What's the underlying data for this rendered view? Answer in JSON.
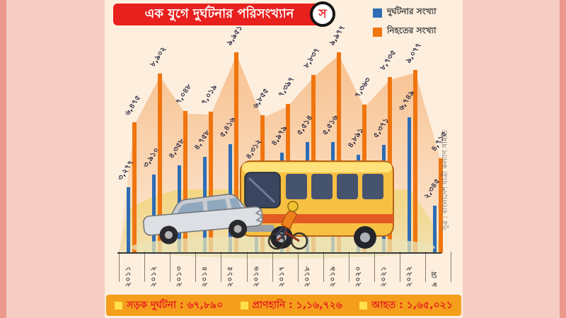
{
  "header": {
    "title": "এক যুগে দুর্ঘটনার পরিসংখ্যান",
    "logo_letter": "স"
  },
  "legend": {
    "accidents": "দুর্ঘটনার সংখ্যা",
    "deaths": "নিহতের সংখ্যা"
  },
  "source": {
    "text": "সূত্র : বাংলাদেশ যাত্রী কল্যাণ সমিতি"
  },
  "summary": {
    "items": [
      {
        "label": "সড়ক দুর্ঘটনা",
        "value": "৬৭,৮৯০"
      },
      {
        "label": "প্রাণহানি",
        "value": "১,১৬,৭২৬"
      },
      {
        "label": "আহত",
        "value": "১,৬৫,০২১"
      }
    ]
  },
  "colors": {
    "accidents_bar": "#2e6cb5",
    "deaths_bar": "#f0750f",
    "title_bar": "#e8201e",
    "summary_bar": "#f59e1b",
    "summary_text": "#e51f1f",
    "panel_bg": "#fdeede",
    "page_bg": "#f6cdc2"
  },
  "chart_data": {
    "type": "bar",
    "title": "এক যুগে দুর্ঘটনার পরিসংখ্যান",
    "categories": [
      "২০১১",
      "২০১২",
      "২০১৩",
      "২০১৪",
      "২০১৫",
      "২০১৬",
      "২০১৭",
      "২০১৮",
      "২০১৯",
      "২০২০",
      "২০২১",
      "২০২২",
      "৯ মে"
    ],
    "series": [
      {
        "name": "দুর্ঘটনার সংখ্যা",
        "color": "#2e6cb5",
        "values": [
          3277,
          3910,
          4358,
          4758,
          5416,
          4312,
          4979,
          5514,
          5516,
          4891,
          5371,
          6749,
          2345
        ],
        "labels": [
          "৩,২৭৭",
          "৩,৯১০",
          "৪,৩৫৮",
          "৪,৭৫৮",
          "৫,৪১৬",
          "৪,৩১২",
          "৪,৯৭৯",
          "৫,৫১৪",
          "৫,৫১৬",
          "৪,৮৯১",
          "৫,৩৭১",
          "৬,৭৪৯",
          "২,৩৪৫"
        ]
      },
      {
        "name": "নিহতের সংখ্যা",
        "color": "#f0750f",
        "values": [
          6475,
          8902,
          7048,
          7019,
          9951,
          6855,
          7397,
          8837,
          9977,
          7363,
          8735,
          9077,
          4715
        ],
        "labels": [
          "৬,৪৭৫",
          "৮,৯০২",
          "৭,০৪৮",
          "৭,০১৯",
          "৯,৯৫১",
          "৬,৮৫৫",
          "৭,৩৯৭",
          "৮,৮৩৭",
          "৯,৯৭৭",
          "৭,৩৬৩",
          "৮,৭৩৫",
          "৯,০৭৭",
          "৪,৭১৫"
        ]
      }
    ],
    "ylim": [
      0,
      10000
    ],
    "grid": false,
    "legend_position": "top-right",
    "value_labels_rotated": true,
    "xlabel": "",
    "ylabel": ""
  }
}
